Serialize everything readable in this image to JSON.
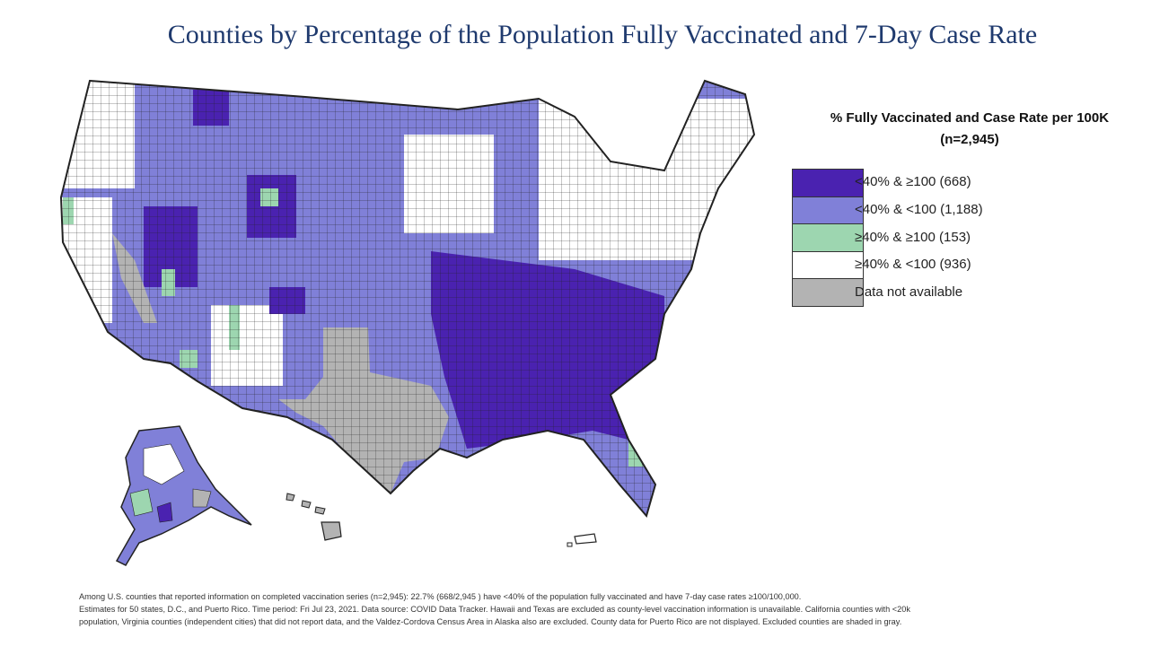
{
  "title": "Counties by Percentage of the Population Fully Vaccinated and 7-Day Case Rate",
  "legend": {
    "title_line1": "% Fully Vaccinated and Case Rate per 100K",
    "title_line2": "(n=2,945)",
    "items": [
      {
        "label": "<40% & ≥100 (668)",
        "color": "#4a22b0"
      },
      {
        "label": "<40% & <100 (1,188)",
        "color": "#8080d8"
      },
      {
        "label": "≥40% & ≥100 (153)",
        "color": "#9dd6b0"
      },
      {
        "label": "≥40% & <100 (936)",
        "color": "#ffffff"
      },
      {
        "label": "Data not available",
        "color": "#b3b3b3"
      }
    ]
  },
  "footnote": {
    "line1": "Among U.S. counties that reported information on completed vaccination series (n=2,945): 22.7% (668/2,945 ) have <40% of the population fully vaccinated and have 7-day case rates ≥100/100,000.",
    "line2": "Estimates for 50 states, D.C., and Puerto Rico. Time period: Fri Jul 23, 2021. Data source: COVID Data Tracker. Hawaii and Texas are excluded as county-level vaccination information is unavailable. California counties with <20k",
    "line3": "population, Virginia counties (independent cities) that did not report data, and the Valdez-Cordova Census Area in Alaska also are excluded. County data for Puerto Rico are not displayed. Excluded counties are shaded in gray."
  },
  "map": {
    "regions": [
      "contiguous-us",
      "alaska",
      "hawaii",
      "puerto-rico"
    ],
    "colors": {
      "dark": "#4a22b0",
      "light": "#8080d8",
      "green": "#9dd6b0",
      "white": "#ffffff",
      "gray": "#b3b3b3",
      "border": "#222222"
    }
  }
}
